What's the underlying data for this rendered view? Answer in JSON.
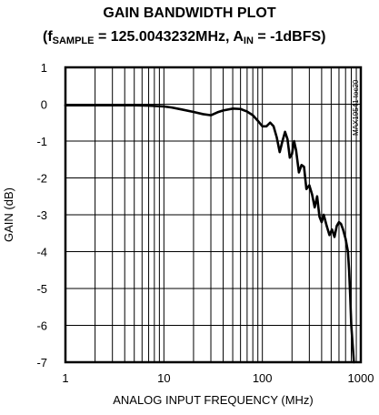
{
  "chart_data": {
    "type": "line",
    "title": "GAIN BANDWIDTH PLOT",
    "subtitle": {
      "prefix": "(f",
      "f_sub": "SAMPLE",
      "middle": " = 125.0043232MHz, A",
      "a_sub": "IN",
      "suffix": " = -1dBFS)"
    },
    "xlabel": "ANALOG INPUT FREQUENCY (MHz)",
    "ylabel": "GAIN (dB)",
    "x_scale": "log",
    "xlim": [
      1,
      1000
    ],
    "ylim": [
      -7,
      1
    ],
    "x_ticks": [
      {
        "value": 1,
        "label": "1"
      },
      {
        "value": 10,
        "label": "10"
      },
      {
        "value": 100,
        "label": "100"
      },
      {
        "value": 1000,
        "label": "1000"
      }
    ],
    "y_ticks": [
      {
        "value": 1,
        "label": "1"
      },
      {
        "value": 0,
        "label": "0"
      },
      {
        "value": -1,
        "label": "-1"
      },
      {
        "value": -2,
        "label": "-2"
      },
      {
        "value": -3,
        "label": "-3"
      },
      {
        "value": -4,
        "label": "-4"
      },
      {
        "value": -5,
        "label": "-5"
      },
      {
        "value": -6,
        "label": "-6"
      },
      {
        "value": -7,
        "label": "-7"
      }
    ],
    "grid": true,
    "watermark": "MAX19541 toc20",
    "series": [
      {
        "x": [
          1,
          2,
          3,
          5,
          7,
          10,
          12,
          15,
          20,
          25,
          30,
          35,
          40,
          50,
          60,
          70,
          80,
          90,
          100,
          110,
          120,
          130,
          140,
          150,
          160,
          170,
          180,
          190,
          200,
          210,
          220,
          235,
          250,
          265,
          280,
          300,
          320,
          340,
          360,
          380,
          400,
          420,
          450,
          480,
          510,
          540,
          570,
          600,
          630,
          660,
          700,
          740,
          760,
          780,
          800,
          830,
          850
        ],
        "y": [
          -0.03,
          -0.03,
          -0.03,
          -0.03,
          -0.04,
          -0.06,
          -0.09,
          -0.14,
          -0.21,
          -0.27,
          -0.3,
          -0.22,
          -0.17,
          -0.12,
          -0.13,
          -0.2,
          -0.3,
          -0.45,
          -0.6,
          -0.6,
          -0.5,
          -0.6,
          -0.9,
          -1.3,
          -1.0,
          -0.75,
          -0.95,
          -1.45,
          -1.35,
          -1.0,
          -1.25,
          -1.85,
          -1.65,
          -1.7,
          -2.3,
          -2.2,
          -2.45,
          -2.8,
          -2.5,
          -3.05,
          -3.2,
          -3.0,
          -3.3,
          -3.55,
          -3.4,
          -3.6,
          -3.3,
          -3.2,
          -3.25,
          -3.4,
          -3.65,
          -4.0,
          -4.5,
          -5.2,
          -6.0,
          -6.6,
          -7.0
        ]
      }
    ]
  }
}
